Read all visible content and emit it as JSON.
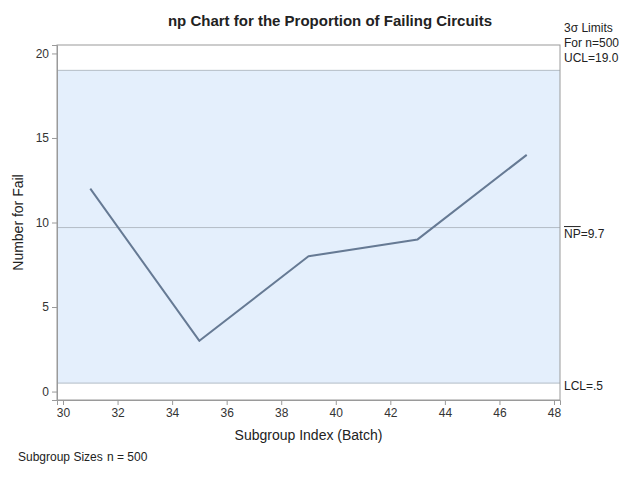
{
  "chart_data": {
    "type": "line",
    "title": "np Chart for the Proportion of Failing Circuits",
    "x_label": "Subgroup Index (Batch)",
    "y_label": "Number for Fail",
    "x": [
      31,
      35,
      39,
      43,
      47
    ],
    "values": [
      12,
      3,
      8,
      9,
      14
    ],
    "color": "#667a94",
    "xlim": [
      29.78,
      48.22
    ],
    "ylim": [
      -0.5,
      20.5
    ],
    "xticks": [
      30,
      32,
      34,
      36,
      38,
      40,
      42,
      44,
      46,
      48
    ],
    "yticks": [
      0,
      5,
      10,
      15,
      20
    ],
    "limits_title": [
      "3σ Limits",
      "For n=500"
    ],
    "ucl": {
      "value": 19.0,
      "label": "UCL=19.0"
    },
    "center_line": {
      "value": 9.7,
      "label": "NP=9.7"
    },
    "lcl": {
      "value": 0.5,
      "label": "LCL=.5"
    },
    "subgroup_sizes_title": "Subgroup Sizes",
    "subgroup_sizes_text": "n = 500"
  }
}
